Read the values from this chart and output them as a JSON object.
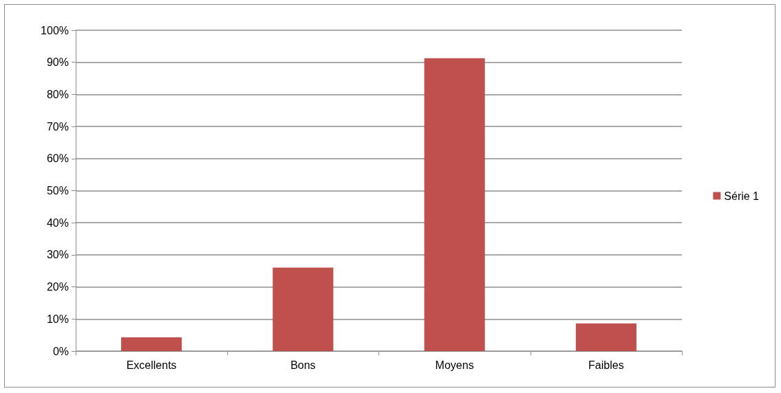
{
  "chart_data": {
    "type": "bar",
    "categories": [
      "Excellents",
      "Bons",
      "Moyens",
      "Faibles"
    ],
    "series": [
      {
        "name": "Série 1",
        "color": "#c0504d",
        "values": [
          4.3,
          26.0,
          91.3,
          8.6
        ]
      }
    ],
    "ylim": [
      0,
      100
    ],
    "yticks": [
      {
        "value": 0,
        "label": "0%"
      },
      {
        "value": 10,
        "label": "10%"
      },
      {
        "value": 20,
        "label": "20%"
      },
      {
        "value": 30,
        "label": "30%"
      },
      {
        "value": 40,
        "label": "40%"
      },
      {
        "value": 50,
        "label": "50%"
      },
      {
        "value": 60,
        "label": "60%"
      },
      {
        "value": 70,
        "label": "70%"
      },
      {
        "value": 80,
        "label": "80%"
      },
      {
        "value": 90,
        "label": "90%"
      },
      {
        "value": 100,
        "label": "100%"
      }
    ],
    "grid": "y",
    "legend": "right"
  }
}
